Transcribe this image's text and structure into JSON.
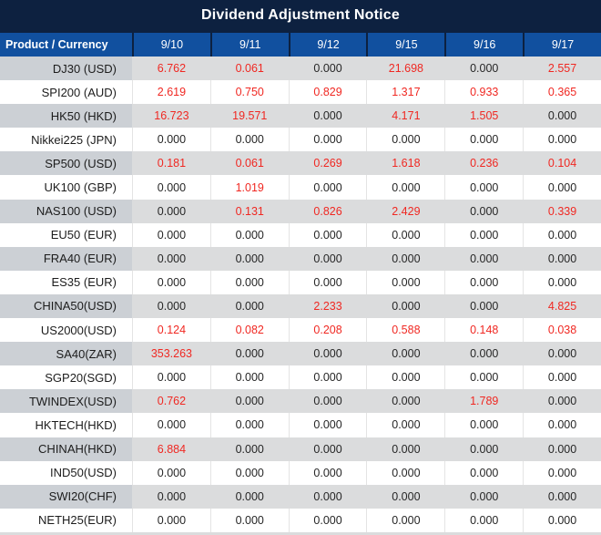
{
  "chart_data": {
    "type": "table",
    "title": "Dividend Adjustment Notice",
    "columns": [
      "Product / Currency",
      "9/10",
      "9/11",
      "9/12",
      "9/15",
      "9/16",
      "9/17"
    ],
    "rows": [
      {
        "product": "DJ30 (USD)",
        "values": [
          "6.762",
          "0.061",
          "0.000",
          "21.698",
          "0.000",
          "2.557"
        ]
      },
      {
        "product": "SPI200 (AUD)",
        "values": [
          "2.619",
          "0.750",
          "0.829",
          "1.317",
          "0.933",
          "0.365"
        ]
      },
      {
        "product": "HK50 (HKD)",
        "values": [
          "16.723",
          "19.571",
          "0.000",
          "4.171",
          "1.505",
          "0.000"
        ]
      },
      {
        "product": "Nikkei225 (JPN)",
        "values": [
          "0.000",
          "0.000",
          "0.000",
          "0.000",
          "0.000",
          "0.000"
        ]
      },
      {
        "product": "SP500 (USD)",
        "values": [
          "0.181",
          "0.061",
          "0.269",
          "1.618",
          "0.236",
          "0.104"
        ]
      },
      {
        "product": "UK100 (GBP)",
        "values": [
          "0.000",
          "1.019",
          "0.000",
          "0.000",
          "0.000",
          "0.000"
        ]
      },
      {
        "product": "NAS100 (USD)",
        "values": [
          "0.000",
          "0.131",
          "0.826",
          "2.429",
          "0.000",
          "0.339"
        ]
      },
      {
        "product": "EU50 (EUR)",
        "values": [
          "0.000",
          "0.000",
          "0.000",
          "0.000",
          "0.000",
          "0.000"
        ]
      },
      {
        "product": "FRA40 (EUR)",
        "values": [
          "0.000",
          "0.000",
          "0.000",
          "0.000",
          "0.000",
          "0.000"
        ]
      },
      {
        "product": "ES35 (EUR)",
        "values": [
          "0.000",
          "0.000",
          "0.000",
          "0.000",
          "0.000",
          "0.000"
        ]
      },
      {
        "product": "CHINA50(USD)",
        "values": [
          "0.000",
          "0.000",
          "2.233",
          "0.000",
          "0.000",
          "4.825"
        ]
      },
      {
        "product": "US2000(USD)",
        "values": [
          "0.124",
          "0.082",
          "0.208",
          "0.588",
          "0.148",
          "0.038"
        ]
      },
      {
        "product": "SA40(ZAR)",
        "values": [
          "353.263",
          "0.000",
          "0.000",
          "0.000",
          "0.000",
          "0.000"
        ]
      },
      {
        "product": "SGP20(SGD)",
        "values": [
          "0.000",
          "0.000",
          "0.000",
          "0.000",
          "0.000",
          "0.000"
        ]
      },
      {
        "product": "TWINDEX(USD)",
        "values": [
          "0.762",
          "0.000",
          "0.000",
          "0.000",
          "1.789",
          "0.000"
        ]
      },
      {
        "product": "HKTECH(HKD)",
        "values": [
          "0.000",
          "0.000",
          "0.000",
          "0.000",
          "0.000",
          "0.000"
        ]
      },
      {
        "product": "CHINAH(HKD)",
        "values": [
          "6.884",
          "0.000",
          "0.000",
          "0.000",
          "0.000",
          "0.000"
        ]
      },
      {
        "product": "IND50(USD)",
        "values": [
          "0.000",
          "0.000",
          "0.000",
          "0.000",
          "0.000",
          "0.000"
        ]
      },
      {
        "product": "SWI20(CHF)",
        "values": [
          "0.000",
          "0.000",
          "0.000",
          "0.000",
          "0.000",
          "0.000"
        ]
      },
      {
        "product": "NETH25(EUR)",
        "values": [
          "0.000",
          "0.000",
          "0.000",
          "0.000",
          "0.000",
          "0.000"
        ]
      }
    ],
    "zero_value": "0.000",
    "styling_rule": "non-zero values rendered in red",
    "layout": {
      "striping": "rows alternate gray (first data row) and white",
      "legend_position": "none",
      "grid": "vertical light dividers between value columns"
    }
  },
  "colors": {
    "title_bg": "#0d2140",
    "header_bg": "#11509f",
    "header_text": "#ffffff",
    "red_value": "#f02822",
    "black_value": "#262626",
    "gray_row_value_bg": "#dbdcdd",
    "gray_row_product_bg": "#ccd0d5"
  }
}
